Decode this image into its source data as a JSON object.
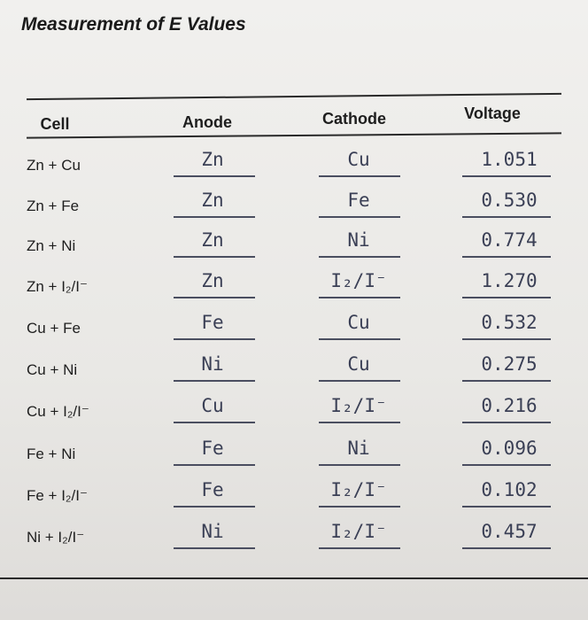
{
  "header": {
    "title": "Measurement of E Values"
  },
  "table": {
    "columns": [
      "Cell",
      "Anode",
      "Cathode",
      "Voltage"
    ],
    "rows": [
      [
        "Zn + Cu",
        "Zn",
        "Cu",
        "1.051"
      ],
      [
        "Zn + Fe",
        "Zn",
        "Fe",
        "0.530"
      ],
      [
        "Zn + Ni",
        "Zn",
        "Ni",
        "0.774"
      ],
      [
        "Zn + I₂/I⁻",
        "Zn",
        "I₂/I⁻",
        "1.270"
      ],
      [
        "Cu + Fe",
        "Fe",
        "Cu",
        "0.532"
      ],
      [
        "Cu + Ni",
        "Ni",
        "Cu",
        "0.275"
      ],
      [
        "Cu + I₂/I⁻",
        "Cu",
        "I₂/I⁻",
        "0.216"
      ],
      [
        "Fe + Ni",
        "Fe",
        "Ni",
        "0.096"
      ],
      [
        "Fe + I₂/I⁻",
        "Fe",
        "I₂/I⁻",
        "0.102"
      ],
      [
        "Ni + I₂/I⁻",
        "Ni",
        "I₂/I⁻",
        "0.457"
      ]
    ]
  }
}
